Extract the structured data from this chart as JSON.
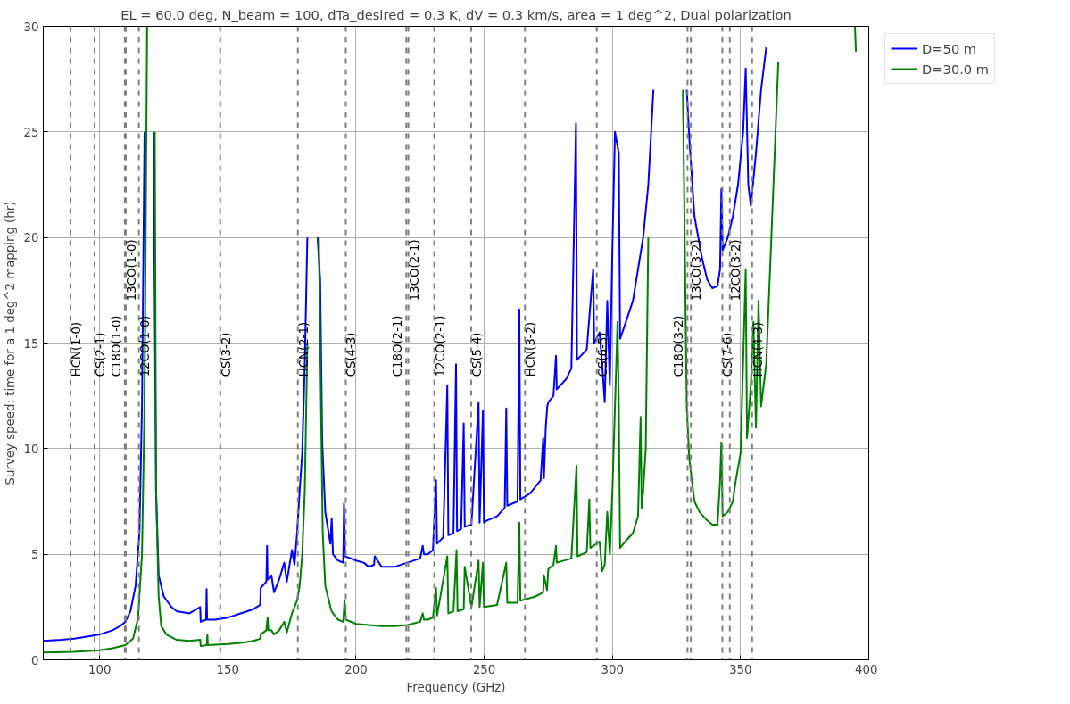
{
  "chart_data": {
    "type": "line",
    "title": "EL = 60.0 deg, N_beam = 100, dTa_desired = 0.3 K, dV = 0.3 km/s, area = 1 deg^2, Dual polarization",
    "xlabel": "Frequency (GHz)",
    "ylabel": "Survey speed: time for a 1 deg^2 mapping (hr)",
    "xlim": [
      78,
      400
    ],
    "ylim": [
      0,
      30
    ],
    "xticks": [
      100,
      150,
      200,
      250,
      300,
      350,
      400
    ],
    "yticks": [
      0,
      5,
      10,
      15,
      20,
      25,
      30
    ],
    "grid": true,
    "legend": "top right",
    "line_style": "solid",
    "marker": "none",
    "series": [
      {
        "name": "D=50 m",
        "color": "#0000ff",
        "x": [
          78,
          85,
          90,
          95,
          100,
          105,
          108,
          110,
          112,
          114,
          115.5,
          116.5,
          117.5,
          118,
          120.5,
          121,
          122,
          123,
          125,
          128,
          130,
          135,
          139.2,
          139.4,
          141.5,
          141.7,
          141.9,
          145,
          150,
          155,
          160,
          162.6,
          162.8,
          165,
          165.3,
          165.5,
          167,
          168,
          170,
          172,
          173,
          175,
          176,
          177,
          178,
          179,
          180,
          181,
          182,
          184,
          185,
          186,
          186.8,
          188,
          190,
          190.5,
          191,
          193,
          195,
          195.3,
          195.7,
          198,
          200,
          203,
          205,
          207,
          207.3,
          210,
          215,
          220,
          225,
          226,
          226.5,
          228,
          230,
          231.2,
          231.6,
          234,
          235.6,
          236,
          238,
          239,
          239.4,
          241,
          242,
          242.4,
          245,
          247.8,
          248.2,
          249.5,
          249.9,
          251,
          255,
          258,
          258.6,
          259,
          263,
          263.7,
          264.1,
          268,
          270,
          272,
          273,
          273.3,
          274,
          274.6,
          275,
          277,
          278,
          278.3,
          279,
          282,
          284,
          285.8,
          286.2,
          290,
          292.5,
          292.9,
          295,
          296,
          297,
          298,
          299,
          300,
          301,
          302.5,
          303,
          305,
          308,
          310,
          312,
          314,
          316,
          317,
          328.5,
          329,
          330,
          332,
          335,
          337,
          339,
          341,
          342,
          342.5,
          343,
          345,
          347,
          349,
          351,
          352,
          353,
          354,
          356,
          358,
          360
        ],
        "values": [
          0.9,
          0.95,
          1.0,
          1.1,
          1.2,
          1.4,
          1.6,
          1.8,
          2.3,
          3.5,
          6,
          12,
          25,
          null,
          null,
          25,
          8,
          4,
          3,
          2.5,
          2.3,
          2.2,
          2.5,
          1.8,
          1.9,
          3.35,
          1.9,
          1.9,
          2.0,
          2.2,
          2.4,
          2.6,
          3.4,
          3.7,
          5.4,
          3.8,
          4.0,
          3.2,
          3.8,
          4.6,
          3.7,
          5.2,
          4.5,
          6,
          8,
          9.8,
          14,
          20,
          null,
          null,
          20,
          18,
          10.3,
          7,
          5.5,
          6.7,
          5.0,
          4.7,
          4.6,
          7.4,
          4.9,
          4.8,
          4.7,
          4.6,
          4.4,
          4.5,
          4.9,
          4.4,
          4.4,
          4.6,
          4.8,
          5.4,
          5.0,
          5.0,
          5.2,
          8.5,
          5.5,
          5.8,
          13.0,
          5.9,
          6.0,
          14.0,
          6.1,
          6.2,
          11.2,
          6.3,
          6.4,
          12.2,
          6.5,
          11.8,
          6.5,
          6.6,
          6.8,
          7.2,
          11.9,
          7.3,
          7.5,
          16.6,
          7.6,
          7.9,
          8.2,
          8.5,
          10.5,
          8.6,
          11,
          12,
          12.2,
          12.5,
          14.4,
          12.8,
          12.9,
          13.3,
          13.8,
          25.4,
          14.2,
          14.7,
          18.5,
          15,
          15.5,
          14,
          12.2,
          17,
          13,
          19.5,
          25,
          24,
          15.2,
          15.9,
          17,
          18.5,
          20,
          22.5,
          27,
          null,
          null,
          27,
          24.7,
          21,
          19,
          18,
          17.6,
          17.7,
          18.5,
          22.3,
          19.4,
          20,
          21,
          22.5,
          25,
          28,
          22.5,
          21.5,
          24,
          27,
          29
        ]
      },
      {
        "name": "D=30.0 m",
        "color": "#008000",
        "x": [
          78,
          90,
          100,
          105,
          110,
          113,
          115,
          116.5,
          117.5,
          118.5,
          121,
          121.5,
          122,
          123,
          124,
          126,
          130,
          135,
          139.2,
          139.4,
          141.8,
          142,
          142.2,
          150,
          155,
          160,
          162.6,
          162.8,
          165,
          165.5,
          165.8,
          167,
          168,
          170,
          172,
          173,
          175,
          177,
          178,
          179,
          180,
          181,
          182,
          185,
          185.5,
          186,
          187,
          188,
          190,
          190.5,
          191,
          193,
          195,
          195.5,
          196,
          200,
          205,
          210,
          215,
          220,
          225,
          226,
          226.5,
          228,
          230,
          231.2,
          231.6,
          235.6,
          236,
          238,
          239.2,
          239.6,
          242,
          242.4,
          245,
          247.8,
          248.2,
          249.5,
          249.9,
          255,
          258.6,
          259,
          263,
          263.7,
          264.1,
          270,
          273,
          273.3,
          274.5,
          275,
          277,
          278,
          278.3,
          284,
          286,
          286.4,
          290,
          291,
          291.4,
          295,
          296,
          297,
          298,
          299,
          300,
          302,
          302.5,
          303,
          305,
          308,
          310,
          311,
          311.4,
          312,
          313,
          314,
          315,
          327,
          327.5,
          329,
          330,
          332,
          334,
          337,
          339,
          341,
          342,
          342.5,
          343,
          345,
          347,
          348,
          350,
          352,
          352.5,
          354,
          355,
          356,
          357,
          358,
          360,
          362,
          364.7,
          365.5,
          394.6,
          395
        ],
        "values": [
          0.35,
          0.38,
          0.45,
          0.55,
          0.7,
          1.0,
          2,
          5,
          12,
          30,
          null,
          25,
          8,
          3,
          1.6,
          1.2,
          0.95,
          0.9,
          0.95,
          0.65,
          0.7,
          1.2,
          0.7,
          0.75,
          0.8,
          0.9,
          1.0,
          1.2,
          1.4,
          2.0,
          1.4,
          1.4,
          1.2,
          1.4,
          1.8,
          1.3,
          2.2,
          2.8,
          3.5,
          5,
          8,
          15,
          null,
          null,
          20,
          15,
          6,
          3.5,
          2.5,
          2.3,
          2.2,
          1.9,
          1.8,
          2.8,
          1.9,
          1.7,
          1.65,
          1.6,
          1.6,
          1.65,
          1.8,
          2.2,
          1.9,
          1.9,
          2.0,
          3.4,
          2.1,
          4.9,
          2.2,
          2.3,
          5.2,
          2.3,
          2.4,
          4.4,
          2.5,
          4.7,
          2.5,
          4.6,
          2.5,
          2.6,
          4.6,
          2.7,
          2.7,
          6.5,
          2.8,
          3.0,
          3.2,
          4.0,
          3.3,
          4.3,
          4.5,
          5.4,
          4.6,
          4.8,
          9.2,
          4.9,
          5.1,
          7.6,
          5.3,
          5.6,
          4.2,
          4.5,
          7.0,
          5.0,
          8.0,
          16,
          12,
          5.3,
          5.6,
          6.0,
          6.8,
          11.5,
          7.2,
          8,
          10,
          20,
          null,
          null,
          27,
          12,
          9.5,
          7.5,
          7.0,
          6.6,
          6.4,
          6.4,
          8.5,
          10.3,
          6.8,
          7.0,
          7.5,
          8.4,
          9.8,
          18.5,
          10.5,
          13,
          16,
          11,
          17,
          12,
          14,
          20,
          28.3,
          null,
          30,
          28.8
        ]
      }
    ],
    "ref_lines": [
      {
        "axis": "x",
        "value": 88.6,
        "label": "HCN(1-0)",
        "color": "#808080",
        "line_style": "dashed"
      },
      {
        "axis": "x",
        "value": 98.0,
        "label": "CS(2-1)",
        "color": "#808080",
        "line_style": "dashed"
      },
      {
        "axis": "x",
        "value": 109.8,
        "label": "C18O(1-0)",
        "color": "#808080",
        "line_style": "dashed"
      },
      {
        "axis": "x",
        "value": 110.2,
        "label": "13CO(1-0)",
        "color": "#808080",
        "line_style": "dashed"
      },
      {
        "axis": "x",
        "value": 115.3,
        "label": "12CO(1-0)",
        "color": "#808080",
        "line_style": "dashed"
      },
      {
        "axis": "x",
        "value": 147.0,
        "label": "CS(3-2)",
        "color": "#808080",
        "line_style": "dashed"
      },
      {
        "axis": "x",
        "value": 177.3,
        "label": "HCN(2-1)",
        "color": "#808080",
        "line_style": "dashed"
      },
      {
        "axis": "x",
        "value": 196.0,
        "label": "CS(4-3)",
        "color": "#808080",
        "line_style": "dashed"
      },
      {
        "axis": "x",
        "value": 219.6,
        "label": "C18O(2-1)",
        "color": "#808080",
        "line_style": "dashed"
      },
      {
        "axis": "x",
        "value": 220.4,
        "label": "13CO(2-1)",
        "color": "#808080",
        "line_style": "dashed"
      },
      {
        "axis": "x",
        "value": 230.5,
        "label": "12CO(2-1)",
        "color": "#808080",
        "line_style": "dashed"
      },
      {
        "axis": "x",
        "value": 244.9,
        "label": "CS(5-4)",
        "color": "#808080",
        "line_style": "dashed"
      },
      {
        "axis": "x",
        "value": 265.9,
        "label": "HCN(3-2)",
        "color": "#808080",
        "line_style": "dashed"
      },
      {
        "axis": "x",
        "value": 293.9,
        "label": "CS(6-5)",
        "color": "#808080",
        "line_style": "dashed"
      },
      {
        "axis": "x",
        "value": 329.3,
        "label": "C18O(3-2)",
        "color": "#808080",
        "line_style": "dashed"
      },
      {
        "axis": "x",
        "value": 330.6,
        "label": "13CO(3-2)",
        "color": "#808080",
        "line_style": "dashed"
      },
      {
        "axis": "x",
        "value": 342.9,
        "label": "CS(7-6)",
        "color": "#808080",
        "line_style": "dashed"
      },
      {
        "axis": "x",
        "value": 345.8,
        "label": "12CO(3-2)",
        "color": "#808080",
        "line_style": "dashed"
      },
      {
        "axis": "x",
        "value": 354.5,
        "label": "HCN(4-3)",
        "color": "#808080",
        "line_style": "dashed"
      }
    ]
  }
}
